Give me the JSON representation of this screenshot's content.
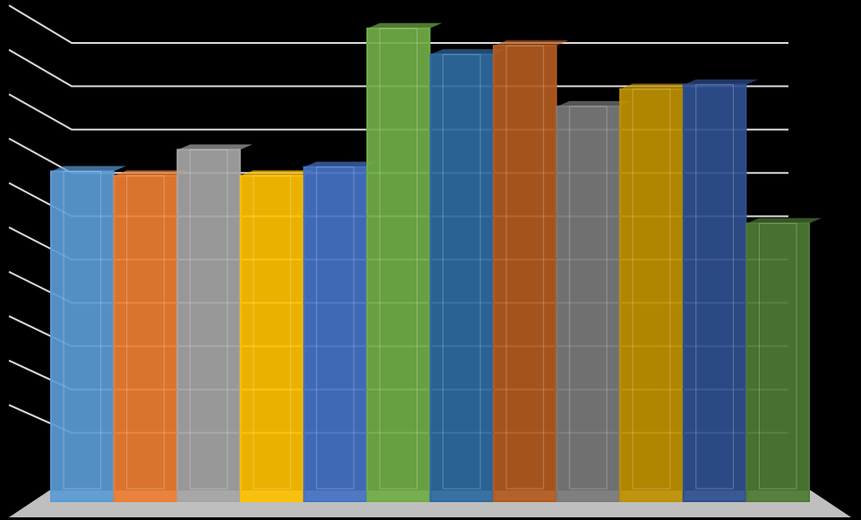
{
  "chart_data": {
    "type": "bar",
    "values": [
      7.2,
      7.1,
      7.7,
      7.1,
      7.3,
      10.5,
      9.9,
      10.1,
      8.7,
      9.1,
      9.2,
      6.0
    ],
    "colors": [
      "#5b9bd5",
      "#ed7d31",
      "#a5a5a5",
      "#ffc000",
      "#4472c4",
      "#70ad47",
      "#2e6aa0",
      "#b35a1f",
      "#7a7a7a",
      "#bf9000",
      "#2f4f8f",
      "#4e7a34"
    ],
    "ylim": [
      0,
      11
    ],
    "yticks": [
      1,
      2,
      3,
      4,
      5,
      6,
      7,
      8,
      9,
      10
    ],
    "grid": true
  }
}
